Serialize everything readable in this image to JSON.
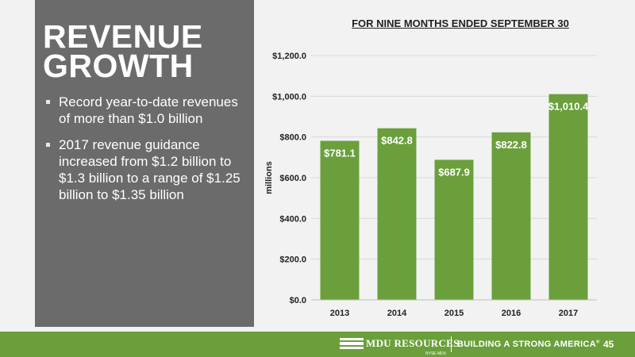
{
  "slide": {
    "title_line1": "REVENUE",
    "title_line2": "GROWTH",
    "bullets": [
      "Record year-to-date revenues of more than $1.0 billion",
      "2017 revenue guidance increased from $1.2 billion to $1.3 billion to a range of $1.25 billion to $1.35 billion"
    ]
  },
  "chart_data": {
    "type": "bar",
    "title": "FOR NINE MONTHS ENDED SEPTEMBER 30",
    "categories": [
      "2013",
      "2014",
      "2015",
      "2016",
      "2017"
    ],
    "values": [
      781.1,
      842.8,
      687.9,
      822.8,
      1010.4
    ],
    "data_labels": [
      "$781.1",
      "$842.8",
      "$687.9",
      "$822.8",
      "$1,010.4"
    ],
    "xlabel": "",
    "ylabel": "millions",
    "ylim": [
      0,
      1200
    ],
    "yticks": [
      0,
      200,
      400,
      600,
      800,
      1000,
      1200
    ],
    "ytick_labels": [
      "$0.0",
      "$200.0",
      "$400.0",
      "$600.0",
      "$800.0",
      "$1,000.0",
      "$1,200.0"
    ],
    "grid": true,
    "bar_color": "#6a9f3b",
    "grid_color": "#d9d9d9"
  },
  "footer": {
    "logo_text": "MDU RESOURCES",
    "logo_subtext": "NYSE MDU",
    "tagline": "BUILDING A STRONG AMERICA",
    "tagline_mark": "®",
    "page_number": "45",
    "color": "#6a9f3b"
  }
}
